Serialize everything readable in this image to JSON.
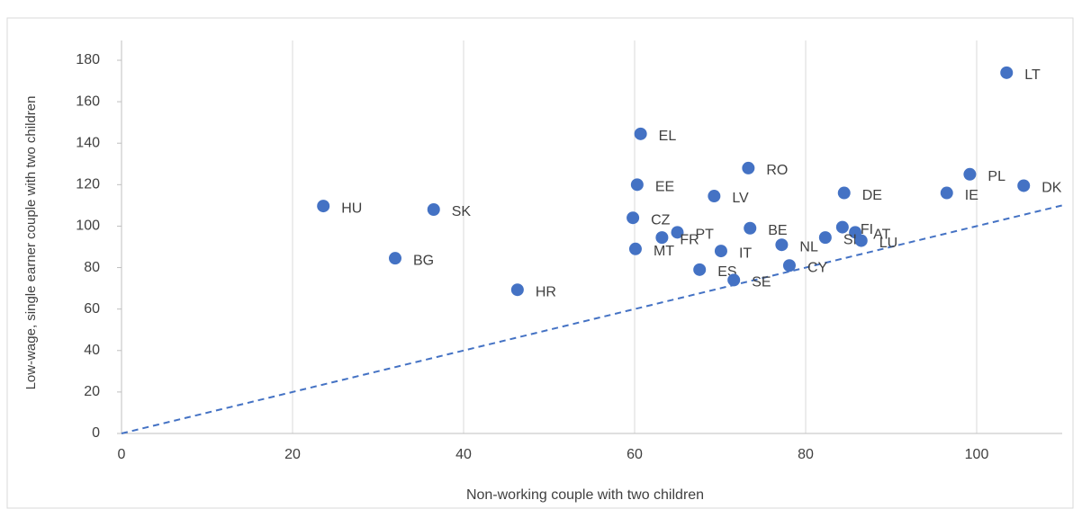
{
  "chart_data": {
    "type": "scatter",
    "x_label": "Non-working couple with two children",
    "y_label": "Low-wage, single earner couple with two children",
    "labels": [
      "LT",
      "DK",
      "PL",
      "IE",
      "DE",
      "EL",
      "RO",
      "EE",
      "LV",
      "HU",
      "SK",
      "CZ",
      "PT",
      "FR",
      "BE",
      "FI",
      "AT",
      "SI",
      "LU",
      "NL",
      "MT",
      "IT",
      "BG",
      "CY",
      "ES",
      "SE",
      "HR"
    ],
    "x": [
      103.5,
      105.5,
      99.2,
      96.5,
      84.5,
      60.7,
      73.3,
      60.3,
      69.3,
      23.6,
      36.5,
      59.8,
      65,
      63.2,
      73.5,
      84.3,
      85.8,
      82.3,
      86.5,
      77.2,
      60.1,
      70.1,
      32,
      78.1,
      67.6,
      71.6,
      46.3
    ],
    "values": [
      174,
      119.5,
      125,
      116,
      116,
      144.5,
      128,
      120,
      114.5,
      109.7,
      108,
      104,
      97,
      94.5,
      99,
      99.5,
      97,
      94.5,
      93,
      91,
      89,
      88,
      84.5,
      81,
      79,
      74,
      69.3
    ],
    "color": "#4472c4",
    "xlim": [
      0,
      110
    ],
    "xticks": [
      0,
      20,
      40,
      60,
      80,
      100
    ],
    "ylim": [
      0,
      180
    ],
    "yticks": [
      0,
      20,
      40,
      60,
      80,
      100,
      120,
      140,
      160,
      180
    ],
    "grid": true
  }
}
